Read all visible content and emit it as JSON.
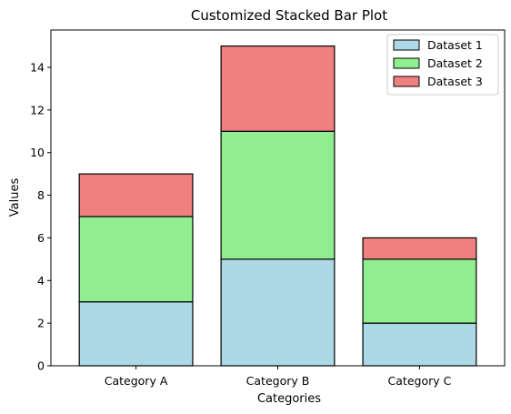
{
  "chart_data": {
    "type": "bar",
    "stacked": true,
    "title": "Customized Stacked Bar Plot",
    "xlabel": "Categories",
    "ylabel": "Values",
    "categories": [
      "Category A",
      "Category B",
      "Category C"
    ],
    "series": [
      {
        "name": "Dataset 1",
        "values": [
          3,
          5,
          2
        ],
        "color": "#add8e6"
      },
      {
        "name": "Dataset 2",
        "values": [
          4,
          6,
          3
        ],
        "color": "#90ee90"
      },
      {
        "name": "Dataset 3",
        "values": [
          2,
          4,
          1
        ],
        "color": "#f08080"
      }
    ],
    "ylim": [
      0,
      15.75
    ],
    "yticks": [
      0,
      2,
      4,
      6,
      8,
      10,
      12,
      14
    ],
    "grid": false,
    "legend_position": "top-right",
    "bar_edge_color": "#000000"
  }
}
